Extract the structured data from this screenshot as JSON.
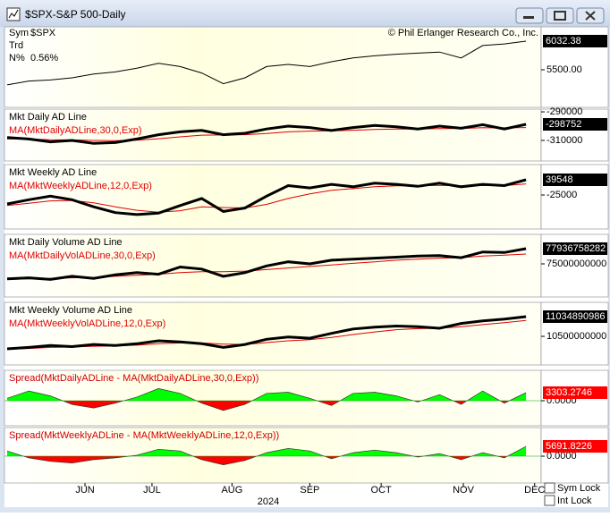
{
  "window": {
    "title": "$SPX-S&P 500-Daily"
  },
  "info": {
    "sym_label": "Sym",
    "sym": "$SPX",
    "trd_label": "Trd",
    "n_label": "N%",
    "n_value": "0.56%",
    "copyright": "© Phil Erlanger Research Co., Inc."
  },
  "x_axis": {
    "xlim": [
      0,
      24.7
    ],
    "xticks": [
      {
        "value": 3.6,
        "label": "JUN"
      },
      {
        "value": 6.7,
        "label": "JUL"
      },
      {
        "value": 10.4,
        "label": "AUG"
      },
      {
        "value": 14.0,
        "label": "SEP"
      },
      {
        "value": 17.3,
        "label": "OCT"
      },
      {
        "value": 21.1,
        "label": "NOV"
      },
      {
        "value": 24.4,
        "label": "DEC"
      }
    ],
    "year": "2024"
  },
  "locks": [
    "Sym Lock",
    "Int Lock"
  ],
  "chart_data": [
    {
      "type": "line",
      "ylim": [
        4802,
        6298
      ],
      "yticks": [
        {
          "value": 5500,
          "label": "5500.00"
        }
      ],
      "series": [
        {
          "color": "#000000",
          "values": [
            5220,
            5290,
            5310,
            5350,
            5420,
            5460,
            5530,
            5620,
            5560,
            5440,
            5240,
            5350,
            5560,
            5600,
            5560,
            5650,
            5720,
            5760,
            5790,
            5810,
            5830,
            5720,
            5950,
            5980,
            6032.38
          ],
          "value_labels": [
            null,
            null,
            null,
            null,
            null,
            null,
            null,
            null,
            null,
            null,
            null,
            null,
            null,
            null,
            null,
            null,
            null,
            null,
            null,
            null,
            null,
            null,
            null,
            null,
            "6032.38"
          ]
        }
      ]
    },
    {
      "type": "line",
      "ylim": [
        -324400,
        -288100
      ],
      "yticks": [
        -290000,
        -310000
      ],
      "series": [
        {
          "name": "Mkt Daily AD Line",
          "color": "#000000",
          "values": [
            -308000,
            -309000,
            -311000,
            -310000,
            -312000,
            -311500,
            -309000,
            -306000,
            -304000,
            -303000,
            -306000,
            -305000,
            -302000,
            -300000,
            -301000,
            -303000,
            -301000,
            -299500,
            -300500,
            -302000,
            -300000,
            -301500,
            -299000,
            -302000,
            -298752
          ],
          "value_labels": [
            null,
            null,
            null,
            null,
            null,
            null,
            null,
            null,
            null,
            null,
            null,
            null,
            null,
            null,
            null,
            null,
            null,
            null,
            null,
            null,
            null,
            null,
            null,
            null,
            "-298752"
          ]
        },
        {
          "name": "MA(MktDailyADLine,30,0,Exp)",
          "color": "#e00000",
          "values": [
            -309000,
            -309000,
            -309500,
            -309600,
            -310000,
            -310200,
            -309800,
            -308800,
            -307500,
            -306300,
            -306200,
            -306000,
            -305200,
            -304000,
            -303500,
            -303300,
            -302900,
            -302300,
            -302000,
            -302000,
            -301700,
            -301600,
            -301100,
            -301200,
            -301000
          ]
        }
      ]
    },
    {
      "type": "line",
      "ylim": [
        -169300,
        104100
      ],
      "yticks": [
        -25000
      ],
      "series": [
        {
          "name": "Mkt Weekly AD Line",
          "color": "#000000",
          "values": [
            -63000,
            -45000,
            -30000,
            -45000,
            -75000,
            -100000,
            -108000,
            -102000,
            -70000,
            -40000,
            -95000,
            -80000,
            -30000,
            15000,
            5000,
            20000,
            10000,
            25000,
            20000,
            12000,
            25000,
            10000,
            20000,
            15000,
            39548
          ],
          "value_labels": [
            null,
            null,
            null,
            null,
            null,
            null,
            null,
            null,
            null,
            null,
            null,
            null,
            null,
            null,
            null,
            null,
            null,
            null,
            null,
            null,
            null,
            null,
            null,
            null,
            "39548"
          ]
        },
        {
          "name": "MA(MktWeeklyADLine,12,0,Exp)",
          "color": "#e00000",
          "values": [
            -70000,
            -60000,
            -50000,
            -48000,
            -58000,
            -75000,
            -90000,
            -98000,
            -92000,
            -75000,
            -78000,
            -80000,
            -65000,
            -40000,
            -20000,
            -5000,
            2000,
            10000,
            14000,
            14000,
            16000,
            14000,
            15000,
            15000,
            22000
          ]
        }
      ]
    },
    {
      "type": "line",
      "ylim": [
        68610000000,
        80700000000
      ],
      "yticks": [
        75000000000
      ],
      "series": [
        {
          "name": "Mkt Daily Volume AD Line",
          "color": "#000000",
          "values": [
            72100000000,
            72300000000,
            72000000000,
            72600000000,
            72200000000,
            72900000000,
            73300000000,
            73000000000,
            74400000000,
            74000000000,
            72600000000,
            73300000000,
            74600000000,
            75400000000,
            75000000000,
            75700000000,
            75900000000,
            76100000000,
            76300000000,
            76500000000,
            76600000000,
            76200000000,
            77300000000,
            77200000000,
            77936758282
          ],
          "value_labels": [
            null,
            null,
            null,
            null,
            null,
            null,
            null,
            null,
            null,
            null,
            null,
            null,
            null,
            null,
            null,
            null,
            null,
            null,
            null,
            null,
            null,
            null,
            null,
            null,
            "77936758282"
          ]
        },
        {
          "name": "MA(MktDailyVolADLine,30,0,Exp)",
          "color": "#e00000",
          "values": [
            72000000000,
            72100000000,
            72200000000,
            72300000000,
            72400000000,
            72600000000,
            72800000000,
            73000000000,
            73300000000,
            73500000000,
            73500000000,
            73600000000,
            73900000000,
            74200000000,
            74500000000,
            74800000000,
            75100000000,
            75400000000,
            75700000000,
            75900000000,
            76100000000,
            76200000000,
            76500000000,
            76700000000,
            76900000000
          ]
        }
      ]
    },
    {
      "type": "line",
      "ylim": [
        9723000000,
        11424000000
      ],
      "yticks": [
        10500000000
      ],
      "series": [
        {
          "name": "Mkt Weekly Volume AD Line",
          "color": "#000000",
          "values": [
            10160000000,
            10200000000,
            10250000000,
            10220000000,
            10280000000,
            10250000000,
            10300000000,
            10380000000,
            10350000000,
            10300000000,
            10200000000,
            10280000000,
            10420000000,
            10480000000,
            10450000000,
            10580000000,
            10700000000,
            10750000000,
            10780000000,
            10760000000,
            10720000000,
            10850000000,
            10920000000,
            10970000000,
            11034890986
          ],
          "value_labels": [
            null,
            null,
            null,
            null,
            null,
            null,
            null,
            null,
            null,
            null,
            null,
            null,
            null,
            null,
            null,
            null,
            null,
            null,
            null,
            null,
            null,
            null,
            null,
            null,
            "11034890986"
          ]
        },
        {
          "name": "MA(MktWeeklyVolADLine,12,0,Exp)",
          "color": "#e00000",
          "values": [
            10150000000,
            10170000000,
            10200000000,
            10210000000,
            10230000000,
            10240000000,
            10260000000,
            10300000000,
            10320000000,
            10320000000,
            10290000000,
            10280000000,
            10330000000,
            10380000000,
            10410000000,
            10470000000,
            10550000000,
            10620000000,
            10680000000,
            10710000000,
            10720000000,
            10760000000,
            10820000000,
            10870000000,
            10930000000
          ]
        }
      ]
    },
    {
      "type": "area",
      "title": "Spread(MktDailyADLine - MA(MktDailyADLine,30,0,Exp))",
      "ylim": [
        -10276,
        12478
      ],
      "yticks": [
        {
          "value": 0,
          "label": "0.0000"
        }
      ],
      "colors": {
        "above": "#00ff00",
        "below": "#ff0000"
      },
      "series": [
        {
          "values": [
            1000,
            4000,
            2000,
            -1500,
            -3000,
            -1000,
            1500,
            5000,
            3000,
            -1000,
            -4000,
            -1500,
            3000,
            3500,
            1000,
            -2000,
            3000,
            3500,
            2000,
            -500,
            2500,
            -1500,
            4000,
            -1000,
            3303.2746
          ],
          "value_labels": [
            null,
            null,
            null,
            null,
            null,
            null,
            null,
            null,
            null,
            null,
            null,
            null,
            null,
            null,
            null,
            null,
            null,
            null,
            null,
            null,
            null,
            null,
            null,
            null,
            "3303.2746"
          ]
        }
      ]
    },
    {
      "type": "area",
      "title": "Spread(MktWeeklyADLine - MA(MktWeeklyADLine,12,0,Exp))",
      "ylim": [
        -15510,
        16544
      ],
      "yticks": [
        {
          "value": 0,
          "label": "0.0000"
        }
      ],
      "colors": {
        "above": "#00ff00",
        "below": "#ff0000"
      },
      "series": [
        {
          "values": [
            3000,
            -1000,
            -3000,
            -4000,
            -2000,
            -1000,
            500,
            4000,
            3000,
            -2000,
            -5000,
            -2500,
            2000,
            4500,
            3000,
            -1500,
            2000,
            3500,
            2000,
            -500,
            1500,
            -2000,
            2000,
            -1000,
            5691.8226
          ],
          "value_labels": [
            null,
            null,
            null,
            null,
            null,
            null,
            null,
            null,
            null,
            null,
            null,
            null,
            null,
            null,
            null,
            null,
            null,
            null,
            null,
            null,
            null,
            null,
            null,
            null,
            "5691.8226"
          ]
        }
      ]
    }
  ]
}
